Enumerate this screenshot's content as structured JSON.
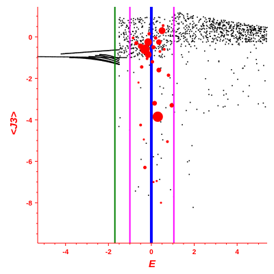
{
  "chart_data": {
    "type": "scatter",
    "title": "",
    "xlabel": "E",
    "ylabel": "<J3>",
    "xlim": [
      -5.3,
      5.4
    ],
    "ylim": [
      -9.95,
      1.45
    ],
    "x_ticks": [
      -4,
      -2,
      0,
      2,
      4
    ],
    "y_ticks": [
      0,
      -2,
      -4,
      -6,
      -8
    ],
    "grid": false,
    "colors": {
      "axis": "#ff0000",
      "small_points": "#000000",
      "large_points": "#ff0000",
      "line_green": "#008000",
      "line_magenta": "#ff00ff",
      "line_blue": "#0000ff"
    },
    "vertical_lines": [
      {
        "x": -1.7,
        "color": "#008000",
        "width": 2
      },
      {
        "x": -1.0,
        "color": "#ff00ff",
        "width": 2
      },
      {
        "x": 0.0,
        "color": "#0000ff",
        "width": 4
      },
      {
        "x": 1.05,
        "color": "#ff00ff",
        "width": 2
      }
    ],
    "large_points": [
      [
        -0.3,
        -0.6,
        7
      ],
      [
        -0.15,
        -0.85,
        5
      ],
      [
        -0.5,
        -0.45,
        4
      ],
      [
        0.35,
        -0.25,
        4
      ],
      [
        0.5,
        0.3,
        5
      ],
      [
        0.1,
        -0.5,
        3
      ],
      [
        -0.7,
        -0.3,
        3
      ],
      [
        0.05,
        -1.2,
        2.5
      ],
      [
        0.35,
        -1.6,
        3.5
      ],
      [
        0.15,
        -3.2,
        3.5
      ],
      [
        0.3,
        -3.85,
        7.5
      ],
      [
        0.95,
        -3.3,
        3.2
      ],
      [
        -0.45,
        -1.45,
        2.5
      ],
      [
        -0.3,
        -6.3,
        2.5
      ],
      [
        -0.5,
        -4.25,
        2
      ],
      [
        0.75,
        -5.05,
        2
      ],
      [
        0.55,
        0.55,
        2
      ],
      [
        -0.1,
        0.15,
        2.5
      ],
      [
        -0.85,
        -0.05,
        2
      ],
      [
        0.2,
        -0.05,
        2.5
      ],
      [
        0.6,
        -0.6,
        2
      ],
      [
        -0.2,
        -1.05,
        2
      ],
      [
        0.1,
        -7.0,
        1.5
      ],
      [
        0.45,
        -8.0,
        1.5
      ],
      [
        -0.6,
        -2.2,
        1.5
      ],
      [
        0.8,
        -1.85,
        2.5
      ],
      [
        -0.35,
        -4.95,
        1.5
      ],
      [
        0.25,
        -6.95,
        1.5
      ],
      [
        -0.15,
        -0.25,
        5.5
      ],
      [
        0.4,
        -0.7,
        2
      ]
    ],
    "small_points_summary": "several thousand small black points: curved bands rising from (-5.3,-0.95) toward (-1.5,-0.3), a dense cloud from E=-1.5 to 5.4 near <J3> between -1 and 1.2, and scattered points descending to <J3>=-9"
  }
}
